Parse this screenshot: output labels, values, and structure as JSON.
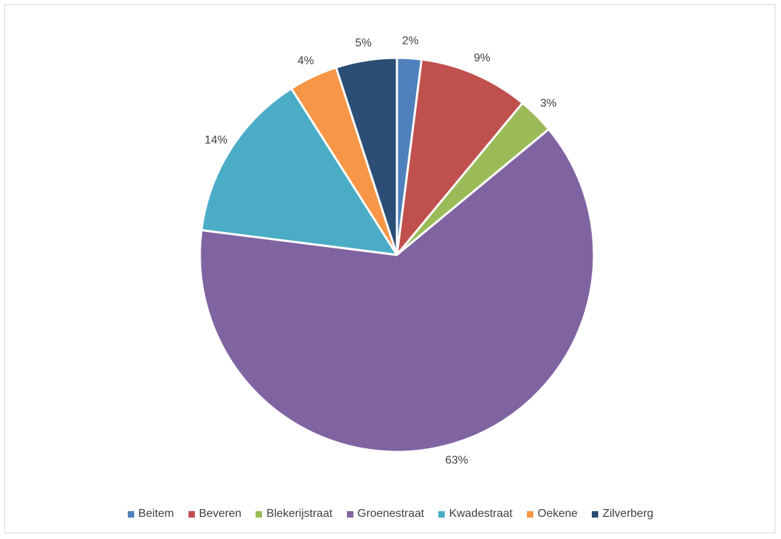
{
  "chart_data": {
    "type": "pie",
    "title": "",
    "categories": [
      "Beitem",
      "Beveren",
      "Blekerijstraat",
      "Groenestraat",
      "Kwadestraat",
      "Oekene",
      "Zilverberg"
    ],
    "values": [
      2,
      9,
      3,
      63,
      14,
      4,
      5
    ],
    "data_labels": [
      "2%",
      "9%",
      "3%",
      "63%",
      "14%",
      "4%",
      "5%"
    ],
    "colors": [
      "#4F81BD",
      "#C0504D",
      "#9BBB59",
      "#8064A2",
      "#4BACC6",
      "#F79646",
      "#2C4D75"
    ],
    "legend_position": "bottom"
  }
}
